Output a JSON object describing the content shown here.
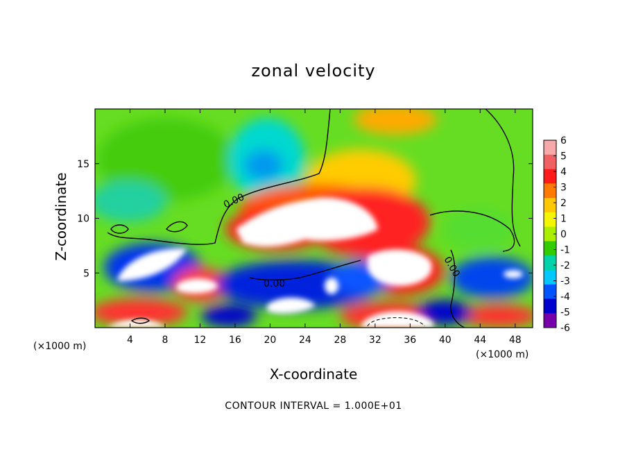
{
  "chart_data": {
    "type": "heatmap",
    "title": "zonal velocity",
    "xlabel": "X-coordinate",
    "ylabel": "Z-coordinate",
    "x_unit": "(×1000 m)",
    "y_unit": "(×1000 m)",
    "xlim": [
      0,
      50
    ],
    "ylim": [
      0,
      20
    ],
    "x_ticks": [
      "4",
      "8",
      "12",
      "16",
      "20",
      "24",
      "28",
      "32",
      "36",
      "40",
      "44",
      "48"
    ],
    "y_ticks": [
      "5",
      "10",
      "15"
    ],
    "colorbar": {
      "ticks": [
        "6",
        "5",
        "4",
        "3",
        "2",
        "1",
        "0",
        "-1",
        "-2",
        "-3",
        "-4",
        "-5",
        "-6"
      ],
      "colors": [
        "#f7a8a8",
        "#f06060",
        "#ff1a1a",
        "#ff7a00",
        "#ffc800",
        "#f5f500",
        "#aaee00",
        "#33cc00",
        "#00d2aa",
        "#00c8ff",
        "#0055ff",
        "#0000cc",
        "#7700aa"
      ],
      "range": [
        -6,
        6
      ]
    },
    "contour_labels": [
      "0.00",
      "0.00",
      "0.00"
    ],
    "footer": "CONTOUR INTERVAL = 1.000E+01"
  }
}
